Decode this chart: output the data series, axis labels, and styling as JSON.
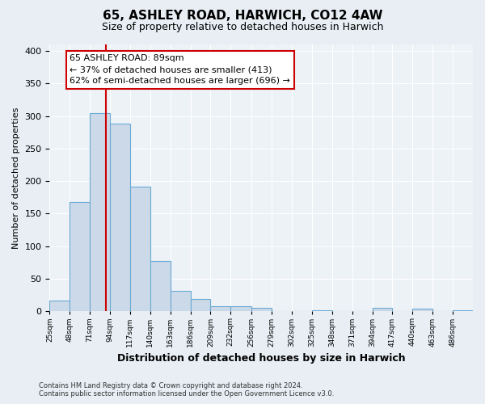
{
  "title": "65, ASHLEY ROAD, HARWICH, CO12 4AW",
  "subtitle": "Size of property relative to detached houses in Harwich",
  "xlabel": "Distribution of detached houses by size in Harwich",
  "ylabel": "Number of detached properties",
  "bin_labels": [
    "25sqm",
    "48sqm",
    "71sqm",
    "94sqm",
    "117sqm",
    "140sqm",
    "163sqm",
    "186sqm",
    "209sqm",
    "232sqm",
    "256sqm",
    "279sqm",
    "302sqm",
    "325sqm",
    "348sqm",
    "371sqm",
    "394sqm",
    "417sqm",
    "440sqm",
    "463sqm",
    "486sqm"
  ],
  "bar_heights": [
    16,
    168,
    305,
    288,
    191,
    78,
    32,
    19,
    8,
    8,
    5,
    0,
    0,
    2,
    0,
    0,
    5,
    0,
    4,
    0,
    2
  ],
  "bin_edges": [
    25,
    48,
    71,
    94,
    117,
    140,
    163,
    186,
    209,
    232,
    256,
    279,
    302,
    325,
    348,
    371,
    394,
    417,
    440,
    463,
    486,
    509
  ],
  "bar_color": "#ccd9e8",
  "bar_edge_color": "#6aaad4",
  "property_size": 89,
  "vline_x": 89,
  "vline_color": "#cc0000",
  "annotation_line1": "65 ASHLEY ROAD: 89sqm",
  "annotation_line2": "← 37% of detached houses are smaller (413)",
  "annotation_line3": "62% of semi-detached houses are larger (696) →",
  "annotation_box_color": "#ffffff",
  "annotation_box_edge": "#cc0000",
  "ylim": [
    0,
    410
  ],
  "yticks": [
    0,
    50,
    100,
    150,
    200,
    250,
    300,
    350,
    400
  ],
  "footer_line1": "Contains HM Land Registry data © Crown copyright and database right 2024.",
  "footer_line2": "Contains public sector information licensed under the Open Government Licence v3.0.",
  "bg_color": "#e8eef4",
  "plot_bg_color": "#edf2f7",
  "grid_color": "#ffffff",
  "title_fontsize": 11,
  "subtitle_fontsize": 9,
  "ylabel_fontsize": 8,
  "xlabel_fontsize": 9,
  "ytick_fontsize": 8,
  "xtick_fontsize": 6.5,
  "footer_fontsize": 6.0,
  "annot_fontsize": 8
}
